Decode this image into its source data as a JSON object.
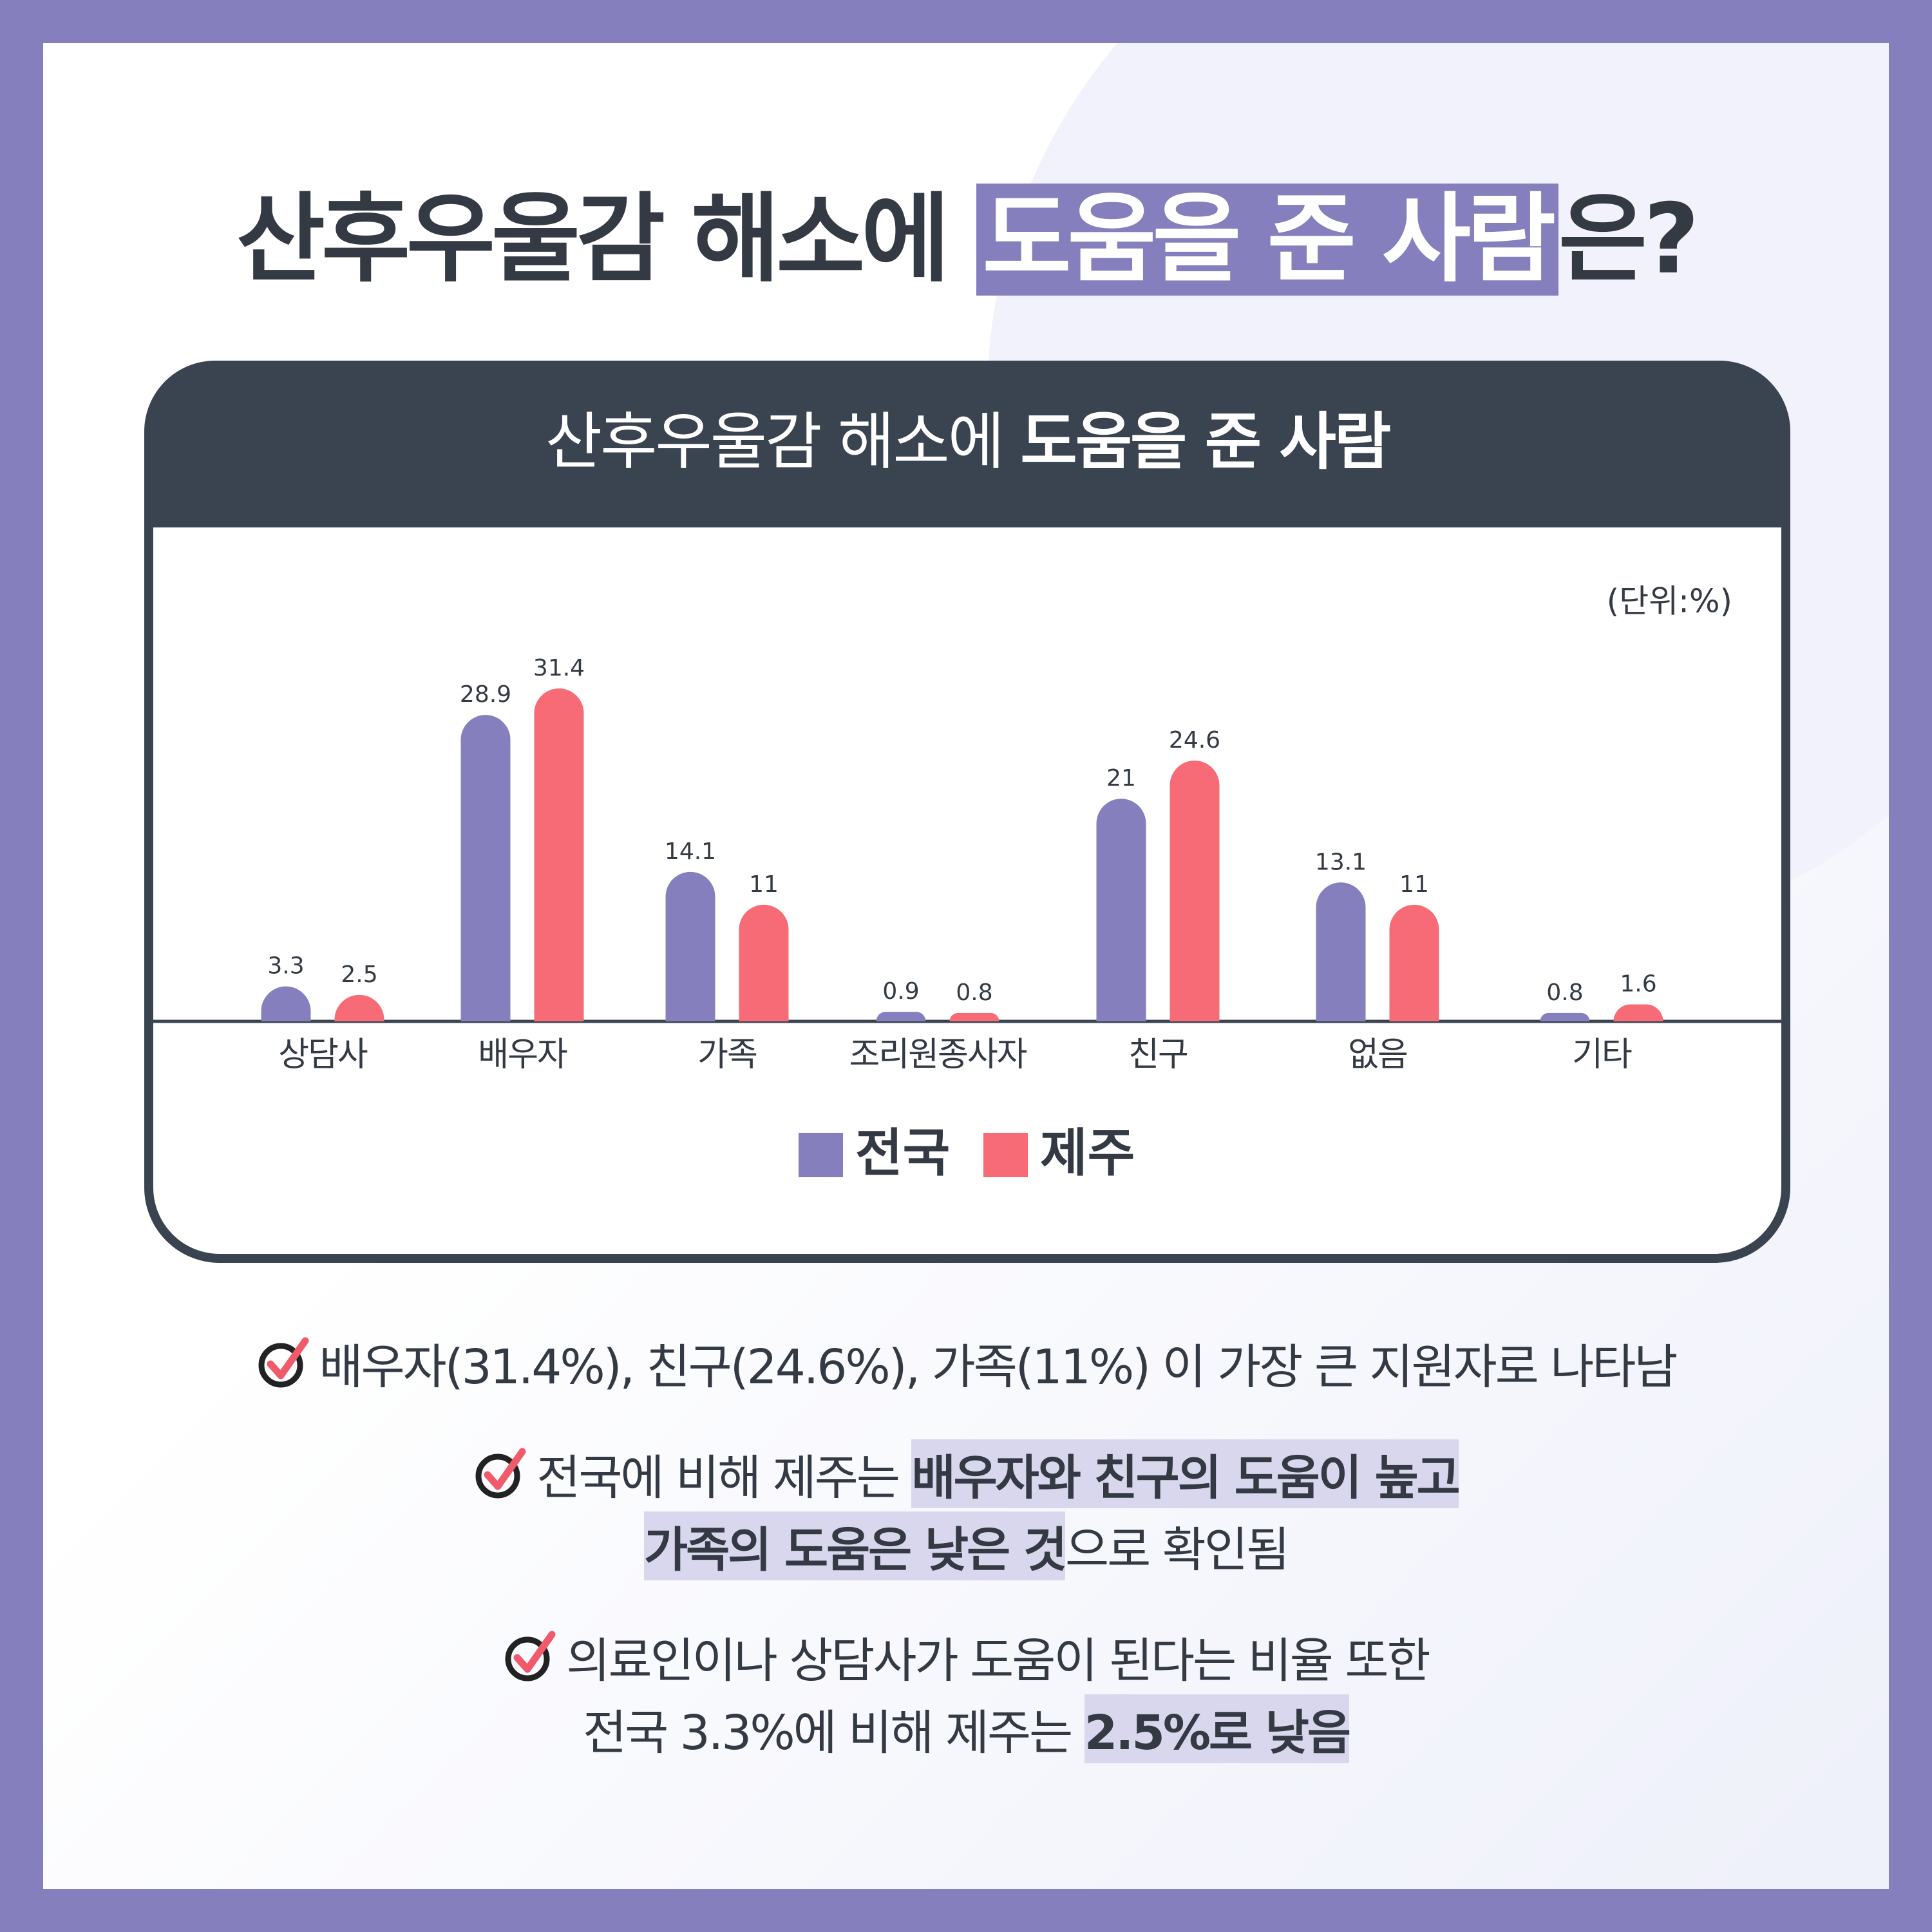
{
  "title": {
    "parts": [
      "산후우울감 해소에",
      "도움을 준 사람",
      "은?"
    ]
  },
  "chart_data": {
    "type": "bar",
    "title": [
      "산후우울감 해소에",
      "도움을 준 사람"
    ],
    "unit": "(단위:%)",
    "categories": [
      "상담사",
      "배우자",
      "가족",
      "조리원종사자",
      "친구",
      "없음",
      "기타"
    ],
    "series": [
      {
        "name": "전국",
        "color": "#8580bd",
        "values": [
          3.3,
          28.9,
          14.1,
          0.9,
          21,
          13.1,
          0.8
        ]
      },
      {
        "name": "제주",
        "color": "#f76b77",
        "values": [
          2.5,
          31.4,
          11,
          0.8,
          24.6,
          11,
          1.6
        ]
      }
    ]
  },
  "notes": [
    {
      "lines": [
        [
          {
            "text": "배우자(31.4%), 친구(24.6%), 가족(11%) 이 가장 큰 지원자로 나타남",
            "highlight": false
          }
        ]
      ]
    },
    {
      "lines": [
        [
          {
            "text": "전국에 비해 제주는 ",
            "highlight": false
          },
          {
            "text": "배우자와 친구의 도움이 높고",
            "highlight": true
          }
        ],
        [
          {
            "text": "가족의 도움은 낮은 것",
            "highlight": true
          },
          {
            "text": "으로 확인됨",
            "highlight": false
          }
        ]
      ]
    },
    {
      "lines": [
        [
          {
            "text": "의료인이나 상담사가 도움이 된다는 비율 또한",
            "highlight": false
          }
        ],
        [
          {
            "text": "전국 3.3%에 비해 제주는 ",
            "highlight": false
          },
          {
            "text": "2.5%로 낮음",
            "highlight": true
          }
        ]
      ]
    }
  ]
}
